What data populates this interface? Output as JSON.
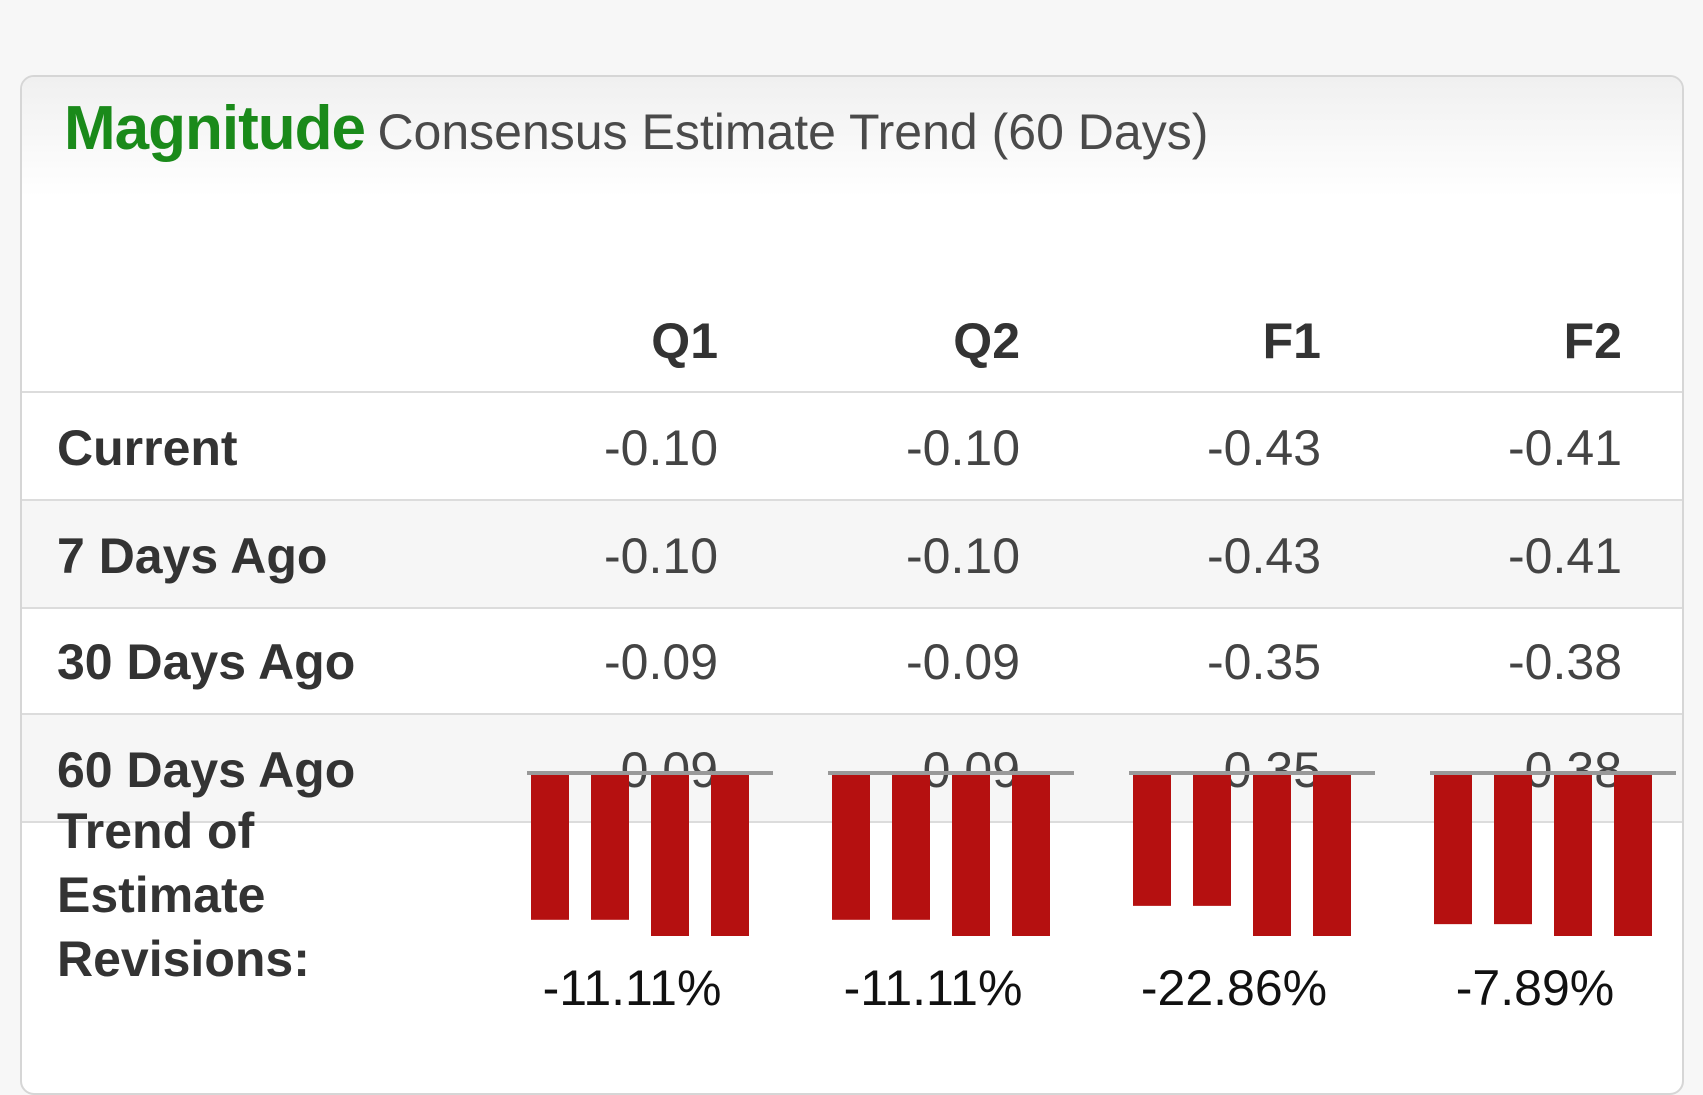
{
  "title": {
    "main": "Magnitude",
    "sub": "Consensus Estimate Trend (60 Days)",
    "main_color": "#1a8a1a"
  },
  "chart_data": {
    "type": "table",
    "columns": [
      "Q1",
      "Q2",
      "F1",
      "F2"
    ],
    "rows": [
      {
        "label": "Current",
        "values": [
          "-0.10",
          "-0.10",
          "-0.43",
          "-0.41"
        ]
      },
      {
        "label": "7 Days Ago",
        "values": [
          "-0.10",
          "-0.10",
          "-0.43",
          "-0.41"
        ]
      },
      {
        "label": "30 Days Ago",
        "values": [
          "-0.09",
          "-0.09",
          "-0.35",
          "-0.38"
        ]
      },
      {
        "label": "60 Days Ago",
        "values": [
          "-0.09",
          "-0.09",
          "-0.35",
          "-0.38"
        ]
      }
    ],
    "trend": {
      "label": "Trend of Estimate Revisions:",
      "bar_color": "#b51010",
      "baseline_color": "#999999",
      "series": [
        {
          "column": "Q1",
          "bars": [
            -0.09,
            -0.09,
            -0.1,
            -0.1
          ],
          "pct": "-11.11%"
        },
        {
          "column": "Q2",
          "bars": [
            -0.09,
            -0.09,
            -0.1,
            -0.1
          ],
          "pct": "-11.11%"
        },
        {
          "column": "F1",
          "bars": [
            -0.35,
            -0.35,
            -0.43,
            -0.43
          ],
          "pct": "-22.86%"
        },
        {
          "column": "F2",
          "bars": [
            -0.38,
            -0.38,
            -0.41,
            -0.41
          ],
          "pct": "-7.89%"
        }
      ]
    }
  }
}
